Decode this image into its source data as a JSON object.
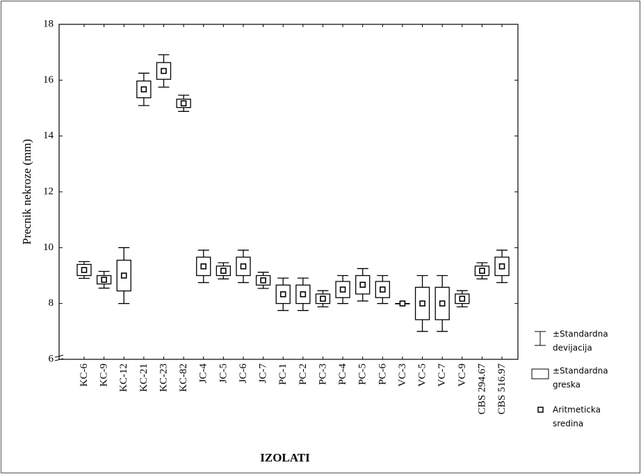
{
  "chart_data": {
    "type": "box",
    "y_label": "Precnik nekroze (mm)",
    "x_label": "IZOLATI",
    "categories": [
      "KC-6",
      "KC-9",
      "KC-12",
      "KC-21",
      "KC-23",
      "KC-82",
      "JC-4",
      "JC-5",
      "JC-6",
      "JC-7",
      "PC-1",
      "PC-2",
      "PC-3",
      "PC-4",
      "PC-5",
      "PC-6",
      "VC-3",
      "VC-5",
      "VC-7",
      "VC-9",
      "CBS 294.67",
      "CBS 516.97"
    ],
    "mean": [
      9.2,
      8.85,
      9.0,
      15.67,
      16.33,
      15.17,
      9.33,
      9.17,
      9.33,
      8.83,
      8.33,
      8.33,
      8.17,
      8.5,
      8.67,
      8.5,
      8.0,
      8.0,
      8.0,
      8.17,
      9.17,
      9.33
    ],
    "se": [
      0.2,
      0.15,
      0.55,
      0.3,
      0.3,
      0.15,
      0.33,
      0.17,
      0.33,
      0.17,
      0.33,
      0.33,
      0.17,
      0.29,
      0.33,
      0.29,
      0,
      0.58,
      0.58,
      0.17,
      0.17,
      0.33
    ],
    "sd": [
      0.3,
      0.3,
      1.0,
      0.58,
      0.58,
      0.29,
      0.58,
      0.29,
      0.58,
      0.29,
      0.58,
      0.58,
      0.29,
      0.5,
      0.58,
      0.5,
      0,
      1.0,
      1.0,
      0.29,
      0.29,
      0.58
    ],
    "ylim": [
      6,
      18
    ],
    "yticks": [
      6,
      8,
      10,
      12,
      14,
      16,
      18
    ],
    "legend": {
      "sd": [
        "±Standardna",
        "devijacija"
      ],
      "se": [
        "±Standardna",
        "greska"
      ],
      "mean": [
        "Aritmeticka",
        "sredina"
      ]
    },
    "color": "#000000"
  }
}
